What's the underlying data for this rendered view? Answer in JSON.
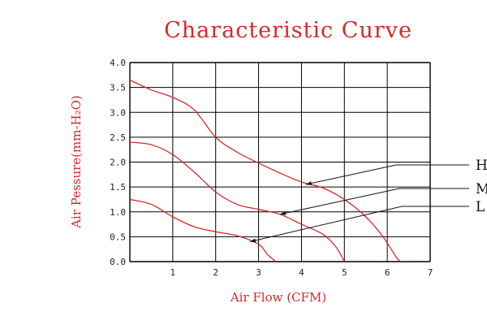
{
  "chart_data": {
    "type": "line",
    "title": "Characteristic Curve",
    "xlabel": "Air Flow (CFM)",
    "ylabel": "Air Pessure(mm-H₂O)",
    "xlim": [
      0,
      7
    ],
    "ylim": [
      0,
      4.0
    ],
    "x_ticks": [
      "1",
      "2",
      "3",
      "4",
      "5",
      "6",
      "7"
    ],
    "y_ticks": [
      "0.0",
      "0.5",
      "1.0",
      "1.5",
      "2.0",
      "2.5",
      "3.0",
      "3.5",
      "4.0"
    ],
    "grid": true,
    "colors": {
      "curve": "#d42a2a",
      "grid": "#000000",
      "title": "#d42a2a",
      "axis_label": "#d42a2a"
    },
    "series": [
      {
        "name": "H",
        "points": [
          [
            0,
            3.65
          ],
          [
            0.5,
            3.45
          ],
          [
            1.0,
            3.3
          ],
          [
            1.5,
            3.05
          ],
          [
            2.0,
            2.5
          ],
          [
            2.5,
            2.2
          ],
          [
            3.0,
            1.98
          ],
          [
            3.5,
            1.78
          ],
          [
            4.0,
            1.6
          ],
          [
            4.5,
            1.48
          ],
          [
            5.0,
            1.25
          ],
          [
            5.5,
            0.9
          ],
          [
            5.9,
            0.5
          ],
          [
            6.2,
            0.1
          ],
          [
            6.3,
            0.0
          ]
        ]
      },
      {
        "name": "M",
        "points": [
          [
            0,
            2.4
          ],
          [
            0.5,
            2.35
          ],
          [
            1.0,
            2.15
          ],
          [
            1.5,
            1.8
          ],
          [
            2.0,
            1.4
          ],
          [
            2.5,
            1.15
          ],
          [
            3.0,
            1.05
          ],
          [
            3.5,
            0.95
          ],
          [
            4.0,
            0.75
          ],
          [
            4.5,
            0.55
          ],
          [
            4.8,
            0.3
          ],
          [
            5.0,
            0.0
          ]
        ]
      },
      {
        "name": "L",
        "points": [
          [
            0,
            1.25
          ],
          [
            0.5,
            1.15
          ],
          [
            1.0,
            0.9
          ],
          [
            1.5,
            0.7
          ],
          [
            2.0,
            0.6
          ],
          [
            2.5,
            0.52
          ],
          [
            3.0,
            0.35
          ],
          [
            3.2,
            0.15
          ],
          [
            3.4,
            0.0
          ]
        ]
      }
    ],
    "callouts": [
      {
        "label": "H",
        "anchor": [
          4.1,
          1.55
        ]
      },
      {
        "label": "M",
        "anchor": [
          3.5,
          0.95
        ]
      },
      {
        "label": "L",
        "anchor": [
          2.8,
          0.4
        ]
      }
    ]
  }
}
